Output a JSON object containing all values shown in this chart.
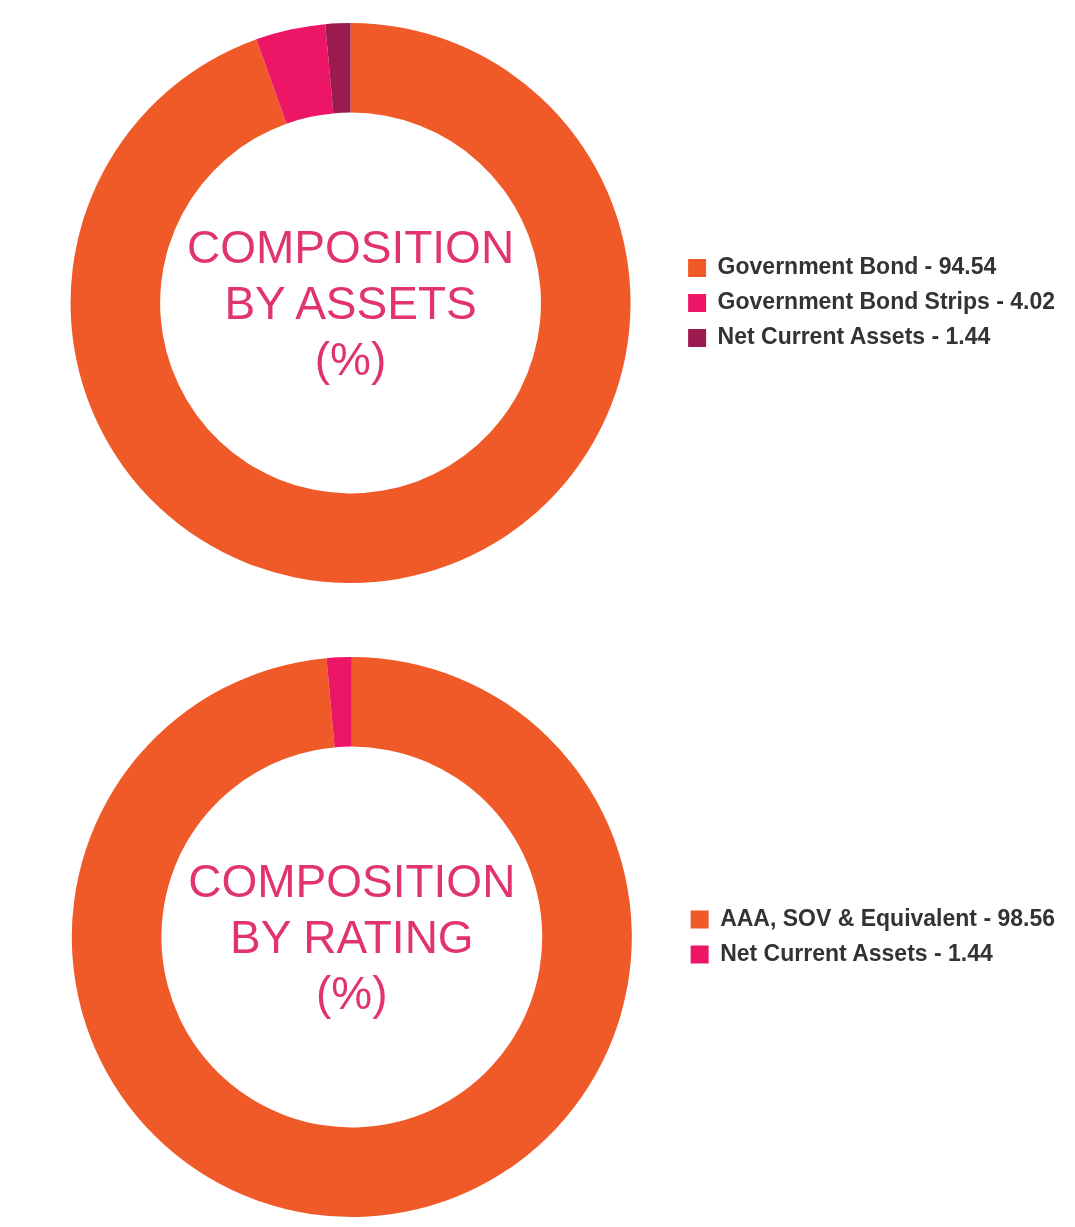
{
  "chart_data": [
    {
      "type": "donut",
      "title": "COMPOSITION\nBY ASSETS\n(%)",
      "categories": [
        "Government Bond - 94.54",
        "Government Bond Strips - 4.02",
        "Net Current Assets - 1.44"
      ],
      "values": [
        94.54,
        4.02,
        1.44
      ],
      "colors": [
        "#f05a28",
        "#ec1566",
        "#9b1b4f"
      ],
      "legend": "right"
    },
    {
      "type": "donut",
      "title": "COMPOSITION\nBY RATING\n(%)",
      "categories": [
        "AAA, SOV & Equivalent - 98.56",
        "Net Current Assets - 1.44"
      ],
      "values": [
        98.56,
        1.44
      ],
      "colors": [
        "#f05a28",
        "#ec1566"
      ],
      "legend": "right"
    }
  ]
}
